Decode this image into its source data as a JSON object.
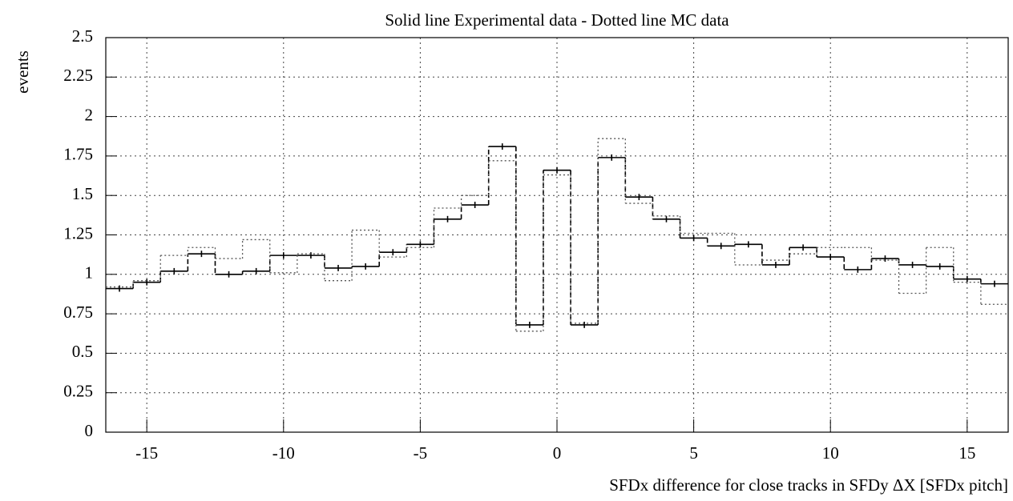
{
  "chart_data": {
    "type": "histogram",
    "title": "Solid line Experimental data - Dotted line MC data",
    "x_label": "SFDx difference for close tracks in SFDy  ΔX [SFDx pitch]",
    "y_label": "events",
    "bins": [
      -16.5,
      -15.5,
      -14.5,
      -13.5,
      -12.5,
      -11.5,
      -10.5,
      -9.5,
      -8.5,
      -7.5,
      -6.5,
      -5.5,
      -4.5,
      -3.5,
      -2.5,
      -1.5,
      -0.5,
      0.5,
      1.5,
      2.5,
      3.5,
      4.5,
      5.5,
      6.5,
      7.5,
      8.5,
      9.5,
      10.5,
      11.5,
      12.5,
      13.5,
      14.5,
      15.5,
      16.5
    ],
    "series": [
      {
        "color": "#000000",
        "dash": "solid",
        "error_bars": true,
        "values": [
          0.91,
          0.95,
          1.02,
          1.13,
          1.0,
          1.02,
          1.12,
          1.12,
          1.04,
          1.05,
          1.14,
          1.19,
          1.35,
          1.44,
          1.81,
          0.68,
          1.66,
          0.68,
          1.74,
          1.49,
          1.35,
          1.23,
          1.18,
          1.19,
          1.06,
          1.17,
          1.11,
          1.03,
          1.1,
          1.06,
          1.05,
          0.97,
          0.94
        ],
        "errors": [
          0.02,
          0.02,
          0.02,
          0.02,
          0.02,
          0.02,
          0.02,
          0.02,
          0.02,
          0.02,
          0.02,
          0.02,
          0.02,
          0.02,
          0.02,
          0.02,
          0.02,
          0.02,
          0.02,
          0.02,
          0.02,
          0.02,
          0.02,
          0.02,
          0.02,
          0.02,
          0.02,
          0.02,
          0.02,
          0.02,
          0.02,
          0.02,
          0.02
        ]
      },
      {
        "color": "#555555",
        "dash": "dotted",
        "error_bars": false,
        "values": [
          0.92,
          0.96,
          1.12,
          1.17,
          1.1,
          1.22,
          1.01,
          1.13,
          0.96,
          1.28,
          1.11,
          1.17,
          1.42,
          1.5,
          1.72,
          0.64,
          1.63,
          0.69,
          1.86,
          1.45,
          1.37,
          1.26,
          1.26,
          1.06,
          1.09,
          1.13,
          1.17,
          1.17,
          1.09,
          0.88,
          1.17,
          0.95,
          0.81
        ]
      }
    ],
    "xlim": [
      -16.5,
      16.5
    ],
    "xticks": [
      -15,
      -10,
      -5,
      0,
      5,
      10,
      15
    ],
    "ylim": [
      0,
      2.5
    ],
    "yticks": [
      0,
      0.25,
      0.5,
      0.75,
      1,
      1.25,
      1.5,
      1.75,
      2,
      2.25,
      2.5
    ],
    "grid": true
  }
}
